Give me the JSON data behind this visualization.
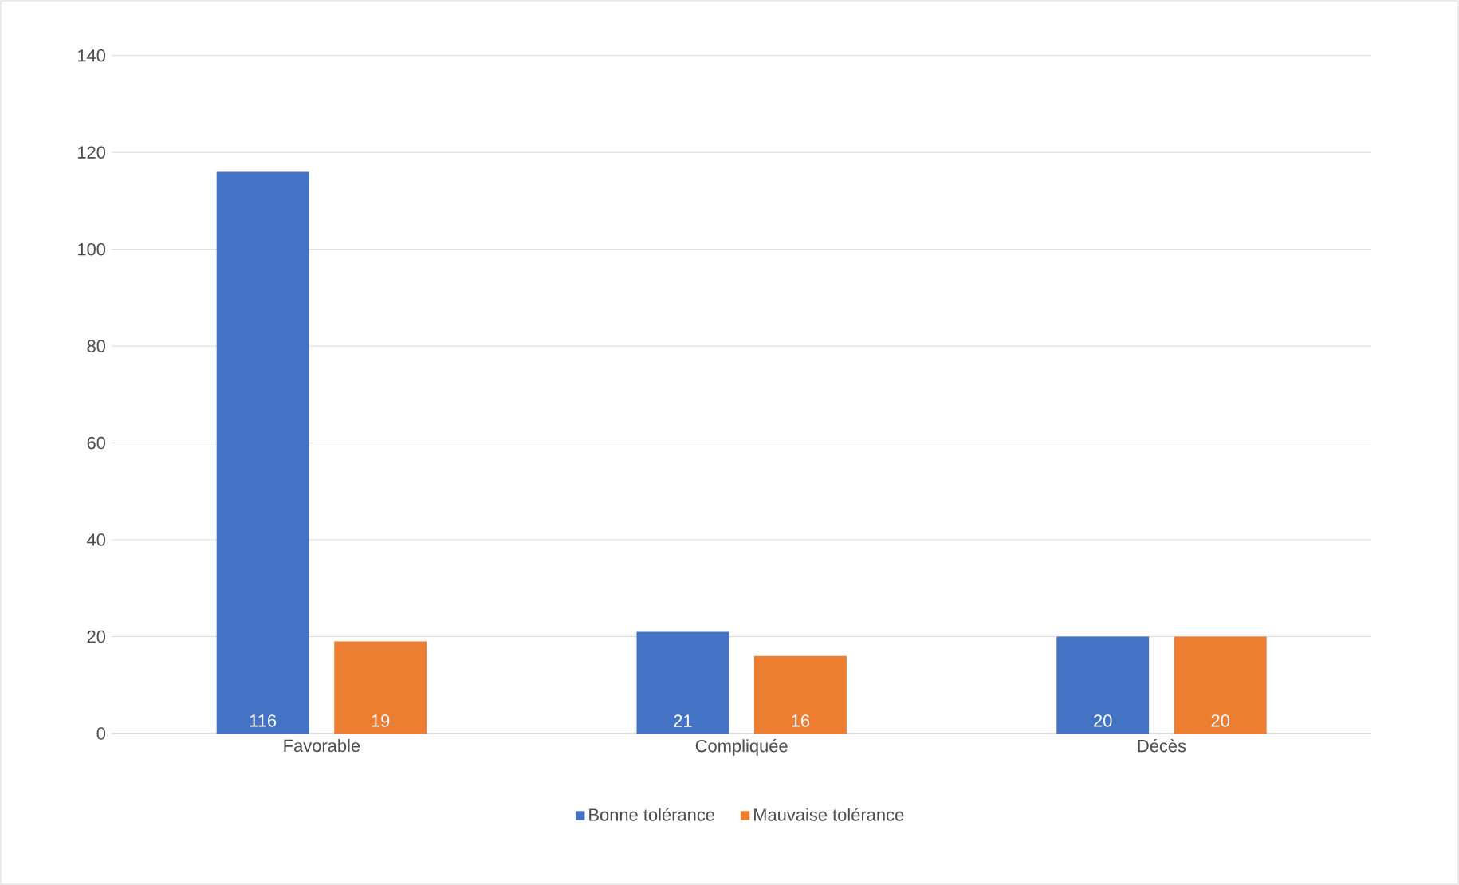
{
  "chart_data": {
    "type": "bar",
    "categories": [
      "Favorable",
      "Compliquée",
      "Décès"
    ],
    "series": [
      {
        "name": "Bonne tolérance",
        "color": "#4472c4",
        "values": [
          116,
          21,
          20
        ]
      },
      {
        "name": "Mauvaise tolérance",
        "color": "#ed7d31",
        "values": [
          19,
          16,
          20
        ]
      }
    ],
    "ylim": [
      0,
      140
    ],
    "yticks": [
      0,
      20,
      40,
      60,
      80,
      100,
      120,
      140
    ],
    "grid": "y",
    "legend": "bottom",
    "data_labels": true
  }
}
